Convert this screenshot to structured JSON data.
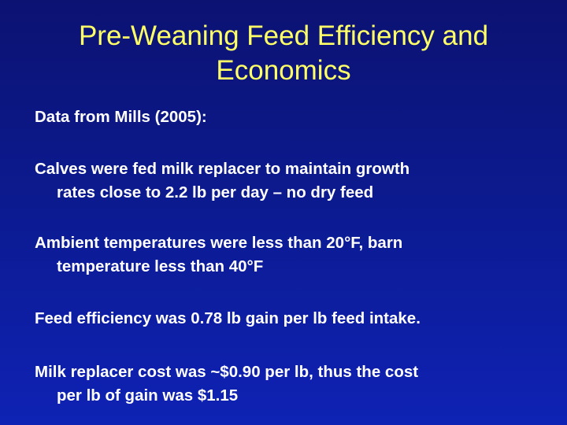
{
  "title": {
    "line1": "Pre-Weaning Feed Efficiency and",
    "line2": "Economics"
  },
  "paragraphs": [
    {
      "line1": "Data from Mills (2005):"
    },
    {
      "line1": "Calves were fed milk replacer to maintain growth",
      "line2": "rates close to 2.2 lb per day – no dry feed"
    },
    {
      "line1": "Ambient temperatures were less than 20°F, barn",
      "line2": "temperature less than 40°F"
    },
    {
      "line1": "Feed efficiency was 0.78 lb gain per lb feed intake."
    },
    {
      "line1": "Milk replacer cost was ~$0.90 per lb, thus the cost",
      "line2": "per lb of gain was $1.15"
    }
  ],
  "colors": {
    "background": "#0c1a8e",
    "title": "#ffff66",
    "body": "#ffffff"
  }
}
